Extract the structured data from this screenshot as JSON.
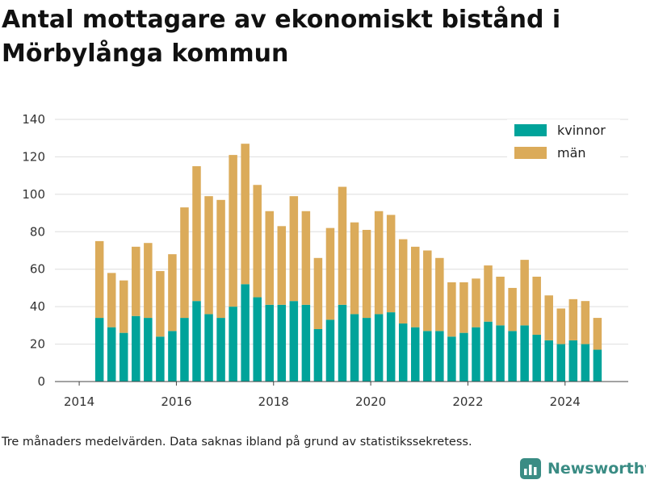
{
  "chart_data": {
    "type": "bar",
    "stacked": true,
    "title": "Antal mottagare av ekonomiskt bistånd i Mörbylånga kommun",
    "x": [
      "2014-06",
      "2014-09",
      "2014-12",
      "2015-03",
      "2015-06",
      "2015-09",
      "2015-12",
      "2016-03",
      "2016-06",
      "2016-09",
      "2016-12",
      "2017-03",
      "2017-06",
      "2017-09",
      "2017-12",
      "2018-03",
      "2018-06",
      "2018-09",
      "2018-12",
      "2019-03",
      "2019-06",
      "2019-09",
      "2019-12",
      "2020-03",
      "2020-06",
      "2020-09",
      "2020-12",
      "2021-03",
      "2021-06",
      "2021-09",
      "2021-12",
      "2022-03",
      "2022-06",
      "2022-09",
      "2022-12",
      "2023-03",
      "2023-06",
      "2023-09",
      "2023-12",
      "2024-03",
      "2024-06",
      "2024-09"
    ],
    "series": [
      {
        "name": "kvinnor",
        "color": "#00a39a",
        "values": [
          34,
          29,
          26,
          35,
          34,
          24,
          27,
          34,
          43,
          36,
          34,
          40,
          52,
          45,
          41,
          41,
          43,
          41,
          28,
          33,
          41,
          36,
          34,
          36,
          37,
          31,
          29,
          27,
          27,
          24,
          26,
          29,
          32,
          30,
          27,
          30,
          25,
          22,
          20,
          22,
          20,
          17
        ]
      },
      {
        "name": "män",
        "color": "#dbab5a",
        "values": [
          41,
          29,
          28,
          37,
          40,
          35,
          41,
          59,
          72,
          63,
          63,
          81,
          75,
          60,
          50,
          42,
          56,
          50,
          38,
          49,
          63,
          49,
          47,
          55,
          52,
          45,
          43,
          43,
          39,
          29,
          27,
          26,
          30,
          26,
          23,
          35,
          31,
          24,
          19,
          22,
          23,
          17
        ]
      }
    ],
    "ylim": [
      0,
      140
    ],
    "yticks": [
      0,
      20,
      40,
      60,
      80,
      100,
      120,
      140
    ],
    "xticks": [
      "2014",
      "2016",
      "2018",
      "2020",
      "2022",
      "2024"
    ],
    "xlim_years": [
      2013.5,
      2025.3
    ],
    "grid": true,
    "legend_position": "top-right"
  },
  "note": "Tre månaders medelvärden. Data saknas ibland på grund av statistikssekretess.",
  "brand": "Newsworthy"
}
